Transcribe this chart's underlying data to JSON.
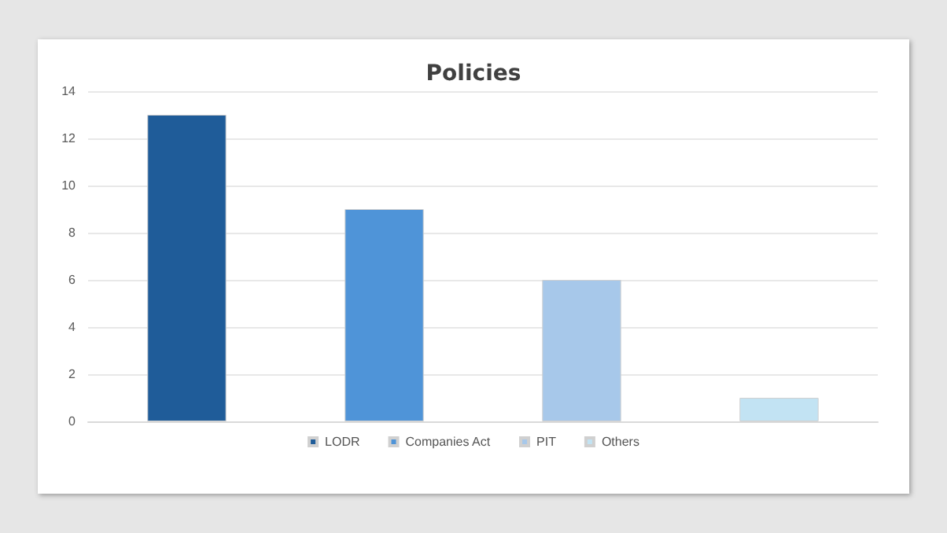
{
  "chart_data": {
    "type": "bar",
    "title": "Policies",
    "categories": [
      null,
      null,
      null,
      null
    ],
    "series": [
      {
        "name": "LODR",
        "color": "#1f5c99",
        "values": [
          13,
          null,
          null,
          null
        ]
      },
      {
        "name": "Companies Act",
        "color": "#4f94d8",
        "values": [
          null,
          9,
          null,
          null
        ]
      },
      {
        "name": "PIT",
        "color": "#a7c8ea",
        "values": [
          null,
          null,
          6,
          null
        ]
      },
      {
        "name": "Others",
        "color": "#c2e3f3",
        "values": [
          null,
          null,
          null,
          1
        ]
      }
    ],
    "ylim": [
      0,
      14
    ],
    "yticks": [
      0,
      2,
      4,
      6,
      8,
      10,
      12,
      14
    ],
    "grid": "y",
    "legend": "bottom"
  }
}
